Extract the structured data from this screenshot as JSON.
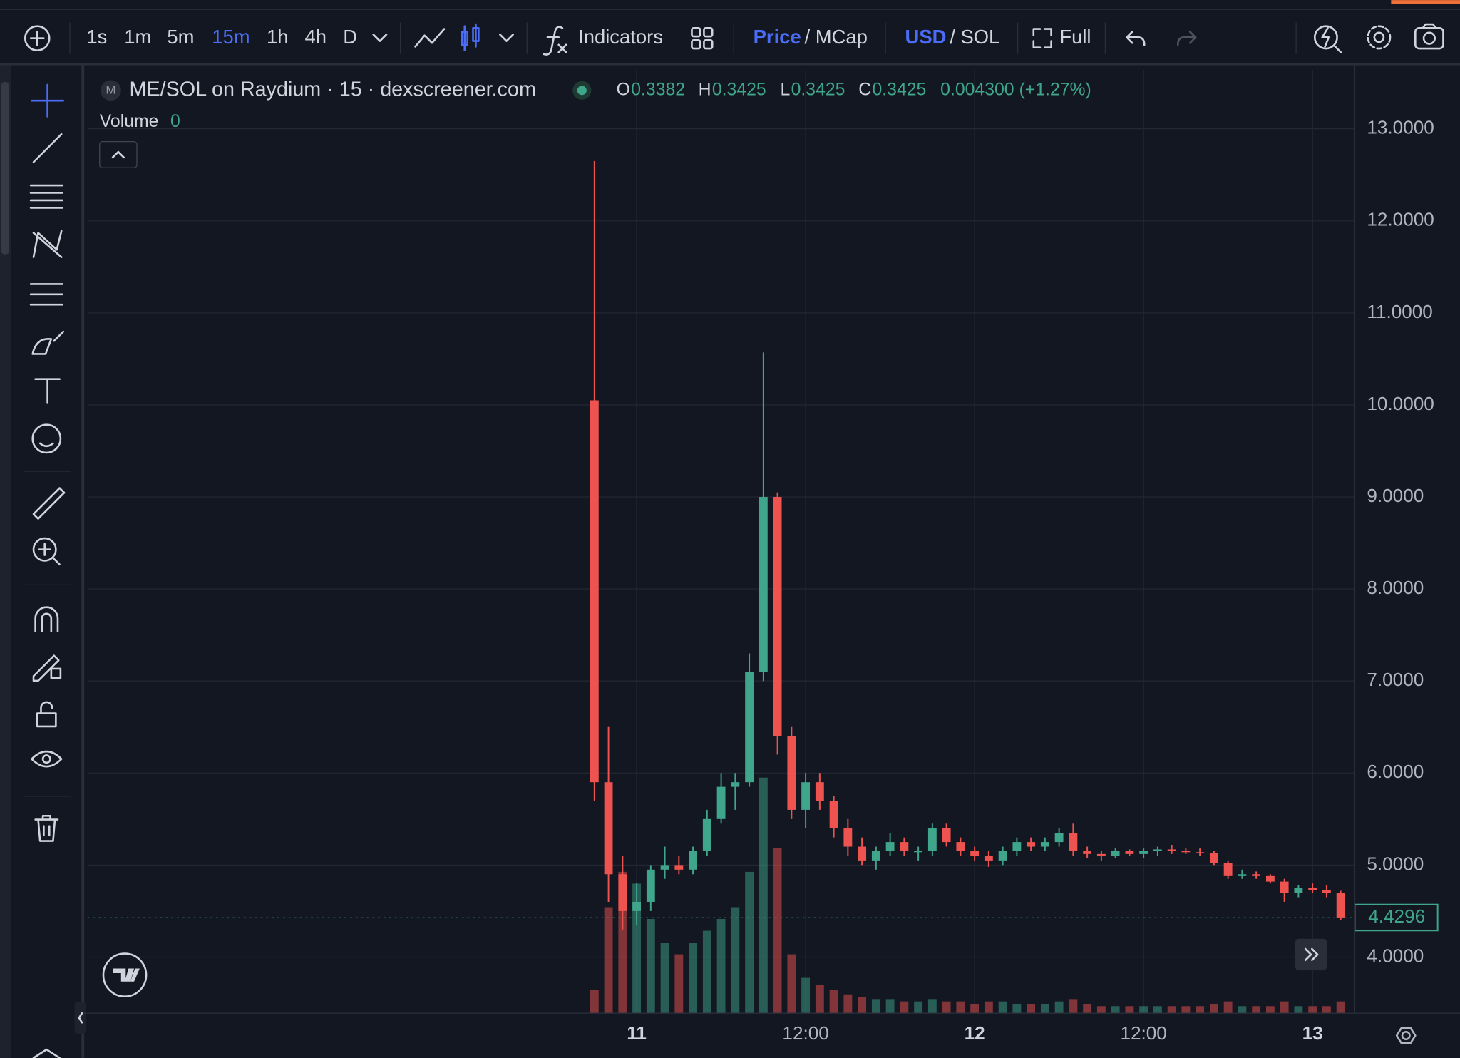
{
  "toolbar": {
    "intervals": [
      "1s",
      "1m",
      "5m",
      "15m",
      "1h",
      "4h",
      "D"
    ],
    "active_interval": 3,
    "indicators": "Indicators",
    "price": "Price",
    "mcap": "/ MCap",
    "usd": "USD",
    "sol": "/ SOL",
    "full": "Full"
  },
  "legend": {
    "symbol_icon": "M",
    "title": "ME/SOL on Raydium · 15 · dexscreener.com",
    "ohlc": [
      {
        "label": "O",
        "value": "0.3382"
      },
      {
        "label": "H",
        "value": "0.3425"
      },
      {
        "label": "L",
        "value": "0.3425"
      },
      {
        "label": "C",
        "value": "0.3425"
      }
    ],
    "change": "0.004300 (+1.27%)",
    "volume_label": "Volume",
    "volume_value": "0"
  },
  "chart_data": {
    "type": "candlestick",
    "x": [
      -3,
      -2,
      -1,
      0,
      1,
      2,
      3,
      4,
      5,
      6,
      7,
      8,
      9,
      10,
      11,
      12,
      13,
      14,
      15,
      16,
      17,
      18,
      19,
      20,
      21,
      22,
      23,
      24,
      25,
      26,
      27,
      28,
      29,
      30,
      31,
      32,
      33,
      34,
      35,
      36,
      37,
      38,
      39,
      40,
      41,
      42,
      43,
      44,
      45,
      46,
      47,
      48,
      49,
      50
    ],
    "open": [
      10.05,
      5.9,
      4.9,
      4.5,
      4.6,
      4.95,
      5.0,
      4.95,
      5.15,
      5.5,
      5.85,
      5.9,
      7.1,
      9.0,
      6.4,
      5.6,
      5.9,
      5.7,
      5.4,
      5.2,
      5.05,
      5.15,
      5.25,
      5.15,
      5.15,
      5.4,
      5.25,
      5.15,
      5.1,
      5.05,
      5.15,
      5.25,
      5.2,
      5.25,
      5.35,
      5.15,
      5.12,
      5.1,
      5.15,
      5.12,
      5.15,
      5.17,
      5.15,
      5.14,
      5.13,
      5.02,
      4.88,
      4.9,
      4.88,
      4.82,
      4.7,
      4.75,
      4.73,
      4.7
    ],
    "high": [
      12.65,
      6.5,
      5.1,
      4.8,
      5.0,
      5.2,
      5.1,
      5.2,
      5.6,
      6.0,
      6.0,
      7.3,
      10.57,
      9.05,
      6.5,
      6.0,
      6.0,
      5.75,
      5.5,
      5.3,
      5.2,
      5.35,
      5.3,
      5.2,
      5.45,
      5.45,
      5.3,
      5.2,
      5.15,
      5.2,
      5.3,
      5.3,
      5.3,
      5.4,
      5.45,
      5.2,
      5.15,
      5.18,
      5.17,
      5.18,
      5.2,
      5.22,
      5.18,
      5.18,
      5.15,
      5.05,
      4.95,
      4.93,
      4.9,
      4.85,
      4.78,
      4.8,
      4.78,
      4.72
    ],
    "low": [
      5.7,
      4.6,
      4.3,
      4.35,
      4.5,
      4.85,
      4.9,
      4.9,
      5.1,
      5.45,
      5.6,
      5.85,
      7.0,
      6.2,
      5.5,
      5.4,
      5.6,
      5.3,
      5.1,
      5.0,
      4.95,
      5.1,
      5.1,
      5.05,
      5.1,
      5.2,
      5.1,
      5.05,
      4.98,
      5.0,
      5.1,
      5.15,
      5.15,
      5.2,
      5.1,
      5.08,
      5.05,
      5.08,
      5.1,
      5.08,
      5.1,
      5.12,
      5.12,
      5.1,
      5.0,
      4.85,
      4.85,
      4.85,
      4.8,
      4.6,
      4.65,
      4.7,
      4.65,
      4.4
    ],
    "close": [
      5.9,
      4.9,
      4.5,
      4.6,
      4.95,
      5.0,
      4.95,
      5.15,
      5.5,
      5.85,
      5.9,
      7.1,
      9.0,
      6.4,
      5.6,
      5.9,
      5.7,
      5.4,
      5.2,
      5.05,
      5.15,
      5.25,
      5.15,
      5.15,
      5.4,
      5.25,
      5.15,
      5.1,
      5.05,
      5.15,
      5.25,
      5.2,
      5.25,
      5.35,
      5.15,
      5.12,
      5.1,
      5.15,
      5.12,
      5.15,
      5.17,
      5.15,
      5.14,
      5.13,
      5.02,
      4.88,
      4.9,
      4.88,
      4.82,
      4.7,
      4.75,
      4.73,
      4.7,
      4.43
    ],
    "volume": [
      10,
      45,
      60,
      55,
      40,
      30,
      25,
      30,
      35,
      40,
      45,
      60,
      100,
      70,
      25,
      15,
      12,
      10,
      8,
      7,
      6,
      6,
      5,
      5,
      6,
      5,
      5,
      4,
      5,
      5,
      4,
      4,
      4,
      5,
      6,
      4,
      3,
      3,
      3,
      3,
      3,
      3,
      3,
      3,
      4,
      5,
      3,
      3,
      3,
      5,
      3,
      3,
      3,
      5
    ],
    "up_color": "#3fa58b",
    "down_color": "#ef5350",
    "xlim": [
      -39,
      51
    ],
    "xticks": [
      {
        "value": 0,
        "label": "11"
      },
      {
        "value": 12,
        "label": "12:00"
      },
      {
        "value": 24,
        "label": "12"
      },
      {
        "value": 36,
        "label": "12:00"
      },
      {
        "value": 48,
        "label": "13"
      }
    ],
    "ylim": [
      3.39,
      13.64
    ],
    "yticks": [
      {
        "value": 4,
        "label": "4.0000"
      },
      {
        "value": 5,
        "label": "5.0000"
      },
      {
        "value": 6,
        "label": "6.0000"
      },
      {
        "value": 7,
        "label": "7.0000"
      },
      {
        "value": 8,
        "label": "8.0000"
      },
      {
        "value": 9,
        "label": "9.0000"
      },
      {
        "value": 10,
        "label": "10.0000"
      },
      {
        "value": 11,
        "label": "11.0000"
      },
      {
        "value": 12,
        "label": "12.0000"
      },
      {
        "value": 13,
        "label": "13.0000"
      }
    ],
    "grid": true,
    "last_price": 4.4296
  }
}
